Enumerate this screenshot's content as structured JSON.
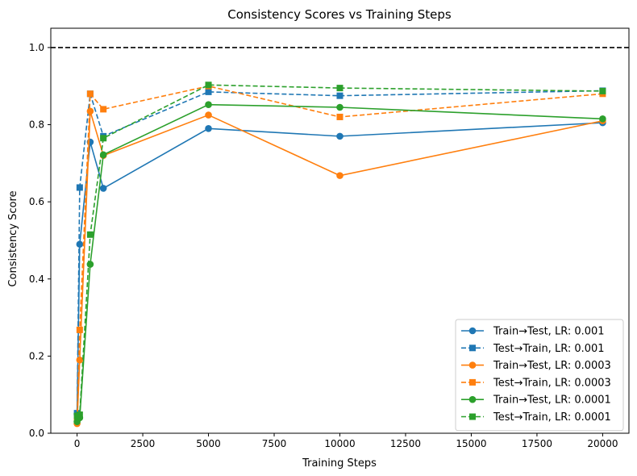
{
  "chart_data": {
    "type": "line",
    "title": "Consistency Scores vs Training Steps",
    "xlabel": "Training Steps",
    "ylabel": "Consistency Score",
    "xlim": [
      -1000,
      21000
    ],
    "ylim": [
      0.0,
      1.05
    ],
    "xticks": [
      0,
      2500,
      5000,
      7500,
      10000,
      12500,
      15000,
      17500,
      20000
    ],
    "yticks": [
      0.0,
      0.2,
      0.4,
      0.6,
      0.8,
      1.0
    ],
    "xtick_labels": [
      "0",
      "2500",
      "5000",
      "7500",
      "10000",
      "12500",
      "15000",
      "17500",
      "20000"
    ],
    "ytick_labels": [
      "0.0",
      "0.2",
      "0.4",
      "0.6",
      "0.8",
      "1.0"
    ],
    "reference_line": {
      "y": 1.0,
      "style": "dashed",
      "color": "#000000"
    },
    "grid": false,
    "legend_position": "bottom-right",
    "x": [
      0,
      100,
      500,
      1000,
      5000,
      10000,
      20000
    ],
    "series": [
      {
        "name": "Train→Test, LR: 0.001",
        "color": "#1f77b4",
        "linestyle": "solid",
        "marker": "circle",
        "values": [
          0.05,
          0.49,
          0.755,
          0.635,
          0.79,
          0.77,
          0.805
        ]
      },
      {
        "name": "Test→Train, LR: 0.001",
        "color": "#1f77b4",
        "linestyle": "dashed",
        "marker": "square",
        "values": [
          0.052,
          0.637,
          0.88,
          0.77,
          0.885,
          0.875,
          0.888
        ]
      },
      {
        "name": "Train→Test, LR: 0.0003",
        "color": "#ff7f0e",
        "linestyle": "solid",
        "marker": "circle",
        "values": [
          0.025,
          0.19,
          0.835,
          0.72,
          0.825,
          0.668,
          0.81
        ]
      },
      {
        "name": "Test→Train, LR: 0.0003",
        "color": "#ff7f0e",
        "linestyle": "dashed",
        "marker": "square",
        "values": [
          0.033,
          0.268,
          0.88,
          0.84,
          0.9,
          0.82,
          0.88
        ]
      },
      {
        "name": "Train→Test, LR: 0.0001",
        "color": "#2ca02c",
        "linestyle": "solid",
        "marker": "circle",
        "values": [
          0.03,
          0.04,
          0.438,
          0.722,
          0.852,
          0.845,
          0.815
        ]
      },
      {
        "name": "Test→Train, LR: 0.0001",
        "color": "#2ca02c",
        "linestyle": "dashed",
        "marker": "square",
        "values": [
          0.045,
          0.048,
          0.515,
          0.765,
          0.903,
          0.895,
          0.887
        ]
      }
    ]
  }
}
